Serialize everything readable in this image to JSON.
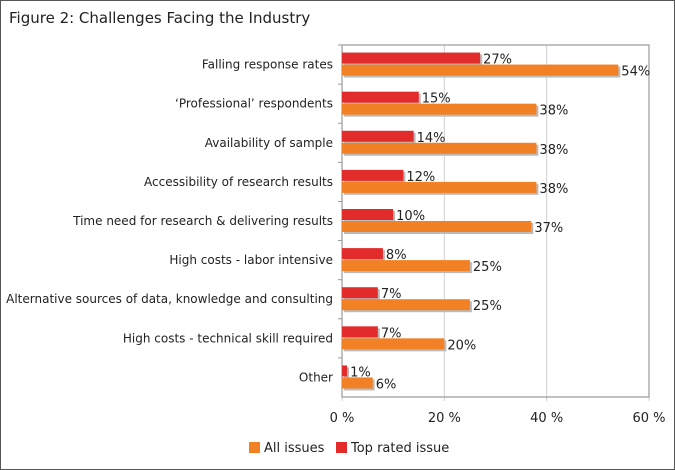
{
  "figure_title": "Figure 2: Challenges Facing the Industry",
  "chart_data": {
    "type": "bar",
    "orientation": "horizontal",
    "title": "Figure 2: Challenges Facing the Industry",
    "categories": [
      "Falling response rates",
      "‘Professional’ respondents",
      "Availability of sample",
      "Accessibility of research results",
      "Time need for research & delivering results",
      "High costs - labor intensive",
      "Alternative sources of data, knowledge and consulting",
      "High costs - technical skill required",
      "Other"
    ],
    "series": [
      {
        "name": "Top rated issue",
        "color": "#e22b2b",
        "values": [
          27,
          15,
          14,
          12,
          10,
          8,
          7,
          7,
          1
        ]
      },
      {
        "name": "All issues",
        "color": "#f28024",
        "values": [
          54,
          38,
          38,
          38,
          37,
          25,
          25,
          20,
          6
        ]
      }
    ],
    "xlim": [
      0,
      60
    ],
    "xticks": [
      "0 %",
      "20 %",
      "40 %",
      "60 %"
    ],
    "grid": true,
    "legend": "bottom-left",
    "legend_entries": [
      "All issues",
      "Top rated issue"
    ]
  }
}
